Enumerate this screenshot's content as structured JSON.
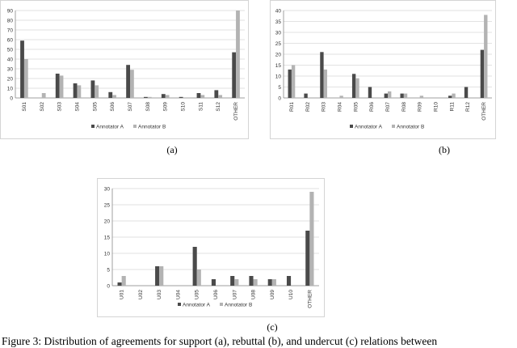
{
  "caption": "Figure 3: Distribution of agreements for support (a), rebuttal (b), and undercut (c) relations between",
  "colors": {
    "annotator_a": "#4a4a4a",
    "annotator_b": "#b3b3b3",
    "grid": "#d9d9d9",
    "axis": "#888888",
    "tick_text": "#333333"
  },
  "chart_data": [
    {
      "type": "bar",
      "panel_label": "(a)",
      "categories": [
        "S01",
        "S02",
        "S03",
        "S04",
        "S05",
        "S06",
        "S07",
        "S08",
        "S09",
        "S10",
        "S11",
        "S12",
        "OTHER"
      ],
      "ylim": [
        0,
        90
      ],
      "yticks": [
        0,
        10,
        20,
        30,
        40,
        50,
        60,
        70,
        80,
        90
      ],
      "grid": true,
      "legend_position": "bottom",
      "series": [
        {
          "name": "Annotator A",
          "values": [
            59,
            0,
            25,
            15,
            18,
            6,
            34,
            1,
            4,
            1,
            5,
            8,
            47
          ]
        },
        {
          "name": "Annotator B",
          "values": [
            40,
            5,
            23,
            13,
            13,
            3,
            29,
            1,
            3,
            0,
            3,
            3,
            90
          ]
        }
      ]
    },
    {
      "type": "bar",
      "panel_label": "(b)",
      "categories": [
        "R01",
        "R02",
        "R03",
        "R04",
        "R05",
        "R06",
        "R07",
        "R08",
        "R09",
        "R10",
        "R11",
        "R12",
        "OTHER"
      ],
      "ylim": [
        0,
        40
      ],
      "yticks": [
        0,
        5,
        10,
        15,
        20,
        25,
        30,
        35,
        40
      ],
      "grid": true,
      "legend_position": "bottom",
      "series": [
        {
          "name": "Annotator A",
          "values": [
            13,
            2,
            21,
            0,
            11,
            5,
            2,
            2,
            0,
            0,
            1,
            5,
            22
          ]
        },
        {
          "name": "Annotator B",
          "values": [
            15,
            0,
            13,
            1,
            9,
            0,
            3,
            2,
            1,
            0,
            2,
            0,
            38
          ]
        }
      ]
    },
    {
      "type": "bar",
      "panel_label": "(c)",
      "categories": [
        "U01",
        "U02",
        "U03",
        "U04",
        "U05",
        "U06",
        "U07",
        "U08",
        "U09",
        "U10",
        "OTHER"
      ],
      "ylim": [
        0,
        30
      ],
      "yticks": [
        0,
        5,
        10,
        15,
        20,
        25,
        30
      ],
      "grid": true,
      "legend_position": "bottom",
      "series": [
        {
          "name": "Annotator A",
          "values": [
            1,
            0,
            6,
            0,
            12,
            2,
            3,
            3,
            2,
            3,
            17
          ]
        },
        {
          "name": "Annotator B",
          "values": [
            3,
            0,
            6,
            0,
            5,
            0,
            2,
            2,
            2,
            0,
            29
          ]
        }
      ]
    }
  ]
}
